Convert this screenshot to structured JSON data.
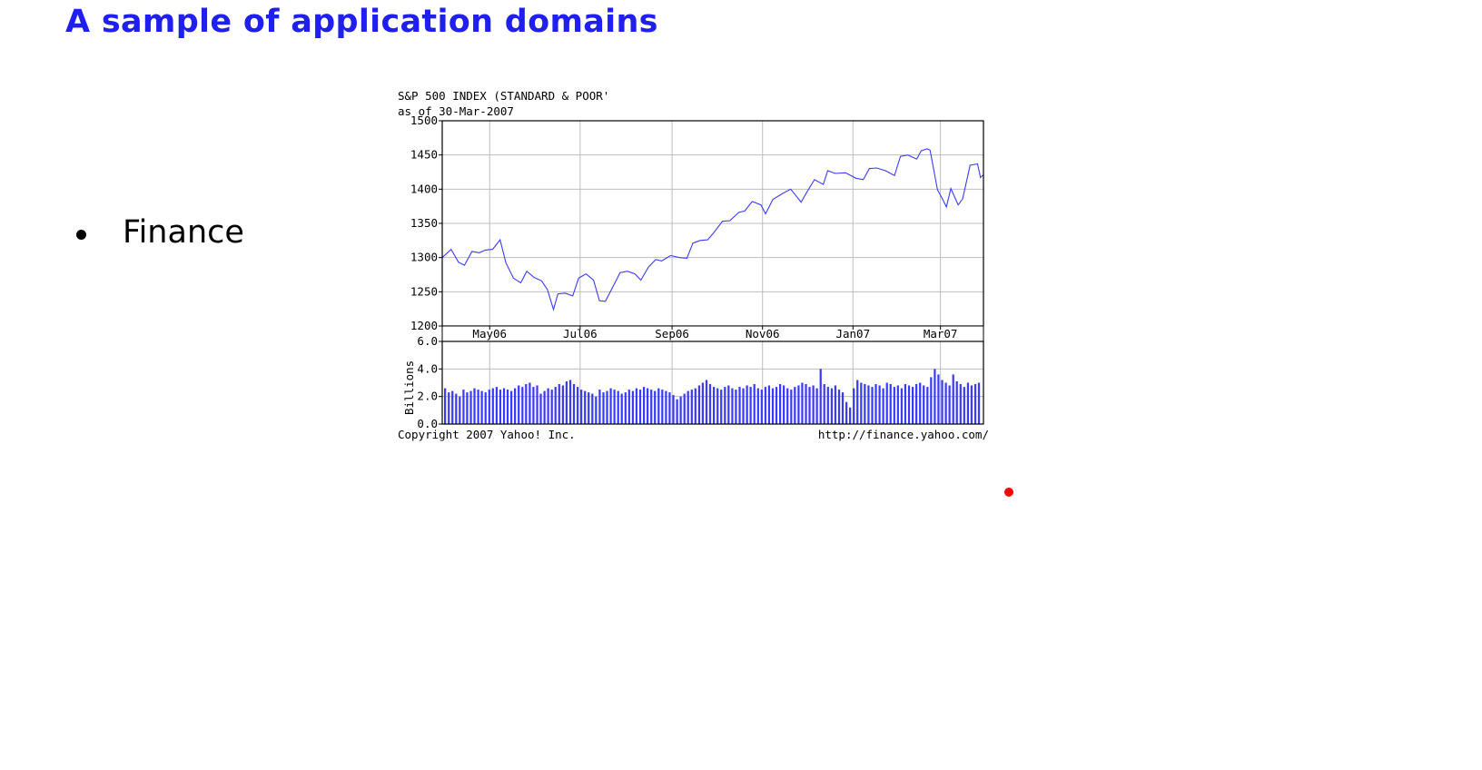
{
  "slide": {
    "title": "A sample of application domains",
    "bullets": [
      "Finance"
    ],
    "accent_color": "#1f1ff2",
    "pointer_color": "#ff0000"
  },
  "chart_data": {
    "type": "line",
    "title": "S&P 500 INDEX (STANDARD & POOR'",
    "subtitle": "as of 30-Mar-2007",
    "x_range": [
      "2006-03-30",
      "2007-03-30"
    ],
    "x_ticks": [
      {
        "label": "May06",
        "date": "2006-05-01"
      },
      {
        "label": "Jul06",
        "date": "2006-07-01"
      },
      {
        "label": "Sep06",
        "date": "2006-09-01"
      },
      {
        "label": "Nov06",
        "date": "2006-11-01"
      },
      {
        "label": "Jan07",
        "date": "2007-01-01"
      },
      {
        "label": "Mar07",
        "date": "2007-03-01"
      }
    ],
    "price_panel": {
      "ylim": [
        1200,
        1500
      ],
      "y_ticks": [
        "1500",
        "1450",
        "1400",
        "1350",
        "1300",
        "1250",
        "1200"
      ],
      "series": [
        {
          "color": "#3a3aff",
          "points": [
            [
              "2006-03-30",
              1300
            ],
            [
              "2006-04-05",
              1312
            ],
            [
              "2006-04-10",
              1293
            ],
            [
              "2006-04-14",
              1289
            ],
            [
              "2006-04-19",
              1309
            ],
            [
              "2006-04-24",
              1307
            ],
            [
              "2006-04-28",
              1311
            ],
            [
              "2006-05-03",
              1312
            ],
            [
              "2006-05-08",
              1326
            ],
            [
              "2006-05-12",
              1292
            ],
            [
              "2006-05-17",
              1270
            ],
            [
              "2006-05-22",
              1263
            ],
            [
              "2006-05-26",
              1280
            ],
            [
              "2006-05-31",
              1271
            ],
            [
              "2006-06-05",
              1266
            ],
            [
              "2006-06-09",
              1253
            ],
            [
              "2006-06-13",
              1224
            ],
            [
              "2006-06-16",
              1247
            ],
            [
              "2006-06-21",
              1248
            ],
            [
              "2006-06-26",
              1244
            ],
            [
              "2006-06-30",
              1270
            ],
            [
              "2006-07-05",
              1276
            ],
            [
              "2006-07-10",
              1267
            ],
            [
              "2006-07-14",
              1237
            ],
            [
              "2006-07-18",
              1236
            ],
            [
              "2006-07-24",
              1261
            ],
            [
              "2006-07-28",
              1278
            ],
            [
              "2006-08-02",
              1280
            ],
            [
              "2006-08-07",
              1276
            ],
            [
              "2006-08-11",
              1267
            ],
            [
              "2006-08-16",
              1286
            ],
            [
              "2006-08-21",
              1297
            ],
            [
              "2006-08-25",
              1295
            ],
            [
              "2006-08-31",
              1303
            ],
            [
              "2006-09-06",
              1300
            ],
            [
              "2006-09-11",
              1299
            ],
            [
              "2006-09-15",
              1321
            ],
            [
              "2006-09-20",
              1325
            ],
            [
              "2006-09-25",
              1326
            ],
            [
              "2006-09-29",
              1336
            ],
            [
              "2006-10-05",
              1353
            ],
            [
              "2006-10-10",
              1354
            ],
            [
              "2006-10-16",
              1366
            ],
            [
              "2006-10-20",
              1368
            ],
            [
              "2006-10-25",
              1382
            ],
            [
              "2006-10-31",
              1377
            ],
            [
              "2006-11-03",
              1364
            ],
            [
              "2006-11-08",
              1385
            ],
            [
              "2006-11-14",
              1393
            ],
            [
              "2006-11-20",
              1400
            ],
            [
              "2006-11-27",
              1381
            ],
            [
              "2006-12-01",
              1396
            ],
            [
              "2006-12-06",
              1414
            ],
            [
              "2006-12-12",
              1407
            ],
            [
              "2006-12-15",
              1427
            ],
            [
              "2006-12-20",
              1423
            ],
            [
              "2006-12-27",
              1424
            ],
            [
              "2007-01-03",
              1416
            ],
            [
              "2007-01-08",
              1414
            ],
            [
              "2007-01-12",
              1430
            ],
            [
              "2007-01-17",
              1431
            ],
            [
              "2007-01-23",
              1427
            ],
            [
              "2007-01-29",
              1420
            ],
            [
              "2007-02-02",
              1448
            ],
            [
              "2007-02-07",
              1450
            ],
            [
              "2007-02-13",
              1444
            ],
            [
              "2007-02-16",
              1456
            ],
            [
              "2007-02-20",
              1459
            ],
            [
              "2007-02-22",
              1457
            ],
            [
              "2007-02-27",
              1399
            ],
            [
              "2007-03-02",
              1387
            ],
            [
              "2007-03-05",
              1374
            ],
            [
              "2007-03-08",
              1401
            ],
            [
              "2007-03-13",
              1377
            ],
            [
              "2007-03-16",
              1386
            ],
            [
              "2007-03-21",
              1435
            ],
            [
              "2007-03-26",
              1437
            ],
            [
              "2007-03-28",
              1417
            ],
            [
              "2007-03-30",
              1421
            ]
          ]
        }
      ]
    },
    "volume_panel": {
      "type": "bar",
      "ylabel": "Billions",
      "ylim": [
        0,
        6.0
      ],
      "y_ticks": [
        "6.0",
        "4.0",
        "2.0",
        "0.0"
      ],
      "color": "#3a3aff",
      "values": [
        2.6,
        2.3,
        2.4,
        2.2,
        2.0,
        2.5,
        2.3,
        2.4,
        2.6,
        2.5,
        2.4,
        2.3,
        2.5,
        2.6,
        2.7,
        2.5,
        2.6,
        2.5,
        2.4,
        2.6,
        2.8,
        2.7,
        2.9,
        3.0,
        2.7,
        2.8,
        2.2,
        2.4,
        2.6,
        2.5,
        2.7,
        2.9,
        2.8,
        3.1,
        3.2,
        2.9,
        2.7,
        2.5,
        2.4,
        2.3,
        2.2,
        2.0,
        2.5,
        2.3,
        2.4,
        2.6,
        2.5,
        2.4,
        2.2,
        2.3,
        2.5,
        2.4,
        2.6,
        2.5,
        2.7,
        2.6,
        2.5,
        2.4,
        2.6,
        2.5,
        2.4,
        2.3,
        2.1,
        1.8,
        2.0,
        2.2,
        2.4,
        2.5,
        2.6,
        2.8,
        3.0,
        3.2,
        2.9,
        2.7,
        2.6,
        2.5,
        2.7,
        2.8,
        2.6,
        2.5,
        2.7,
        2.6,
        2.8,
        2.7,
        2.9,
        2.6,
        2.5,
        2.7,
        2.8,
        2.6,
        2.7,
        2.9,
        2.8,
        2.6,
        2.5,
        2.7,
        2.8,
        3.0,
        2.9,
        2.7,
        2.8,
        2.6,
        4.0,
        2.9,
        2.7,
        2.6,
        2.8,
        2.5,
        2.3,
        1.6,
        1.2,
        2.6,
        3.2,
        3.0,
        2.9,
        2.8,
        2.7,
        2.9,
        2.8,
        2.6,
        3.0,
        2.9,
        2.7,
        2.8,
        2.6,
        2.9,
        2.8,
        2.7,
        2.9,
        3.0,
        2.8,
        2.7,
        3.4,
        4.0,
        3.6,
        3.2,
        3.0,
        2.8,
        3.6,
        3.1,
        2.9,
        2.7,
        3.0,
        2.8,
        2.9,
        3.0
      ]
    },
    "footer_left": "Copyright 2007 Yahoo! Inc.",
    "footer_right": "http://finance.yahoo.com/",
    "grid": true
  }
}
